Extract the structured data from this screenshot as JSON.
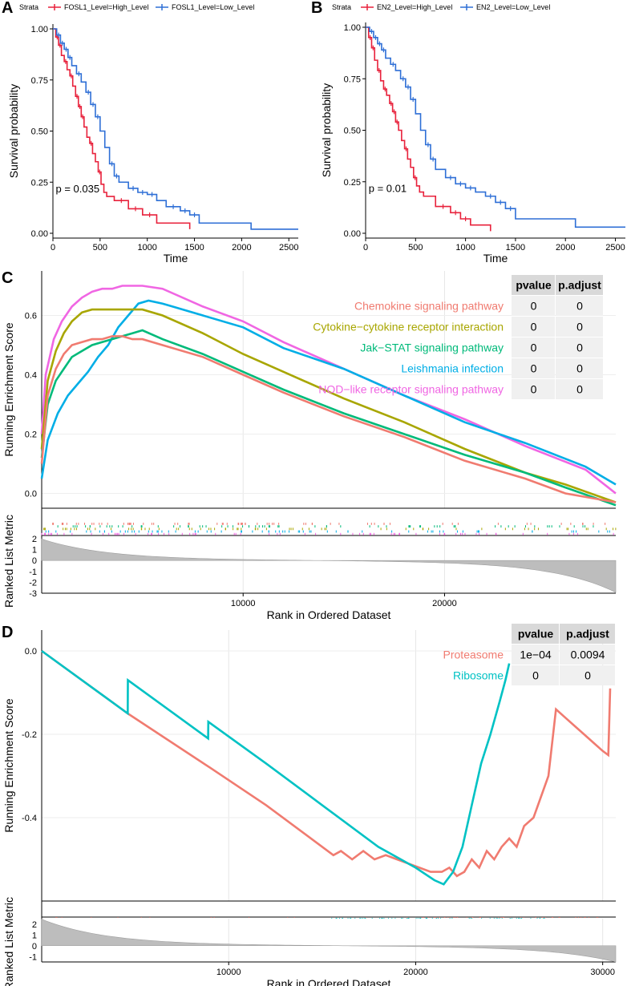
{
  "panels": {
    "A": "A",
    "B": "B",
    "C": "C",
    "D": "D"
  },
  "chart_data": [
    {
      "id": "A",
      "type": "line",
      "step": true,
      "legend_title": "Strata",
      "xlabel": "Time",
      "ylabel": "Survival probability",
      "xlim": [
        0,
        2600
      ],
      "ylim": [
        0,
        1
      ],
      "xticks": [
        0,
        500,
        1000,
        1500,
        2000,
        2500
      ],
      "yticks": [
        0,
        0.25,
        0.5,
        0.75,
        1
      ],
      "ytick_labels": [
        "0.00",
        "0.25",
        "0.50",
        "0.75",
        "1.00"
      ],
      "annotation": "p = 0.035",
      "series": [
        {
          "name": "FOSL1_Level=High_Level",
          "color": "#e8213b",
          "x": [
            0,
            30,
            60,
            90,
            120,
            150,
            180,
            210,
            240,
            270,
            300,
            330,
            360,
            390,
            420,
            450,
            480,
            510,
            540,
            570,
            650,
            800,
            950,
            1100,
            1450
          ],
          "y": [
            1.0,
            0.96,
            0.92,
            0.87,
            0.84,
            0.8,
            0.77,
            0.72,
            0.67,
            0.62,
            0.57,
            0.52,
            0.47,
            0.44,
            0.39,
            0.35,
            0.3,
            0.24,
            0.2,
            0.18,
            0.16,
            0.12,
            0.09,
            0.05,
            0.02
          ]
        },
        {
          "name": "FOSL1_Level=Low_Level",
          "color": "#2e6fd6",
          "x": [
            0,
            40,
            80,
            120,
            160,
            200,
            250,
            300,
            350,
            400,
            450,
            500,
            550,
            600,
            650,
            700,
            800,
            900,
            1000,
            1100,
            1200,
            1350,
            1450,
            1550,
            2100,
            2600
          ],
          "y": [
            1.0,
            0.97,
            0.93,
            0.9,
            0.86,
            0.82,
            0.78,
            0.74,
            0.69,
            0.63,
            0.57,
            0.5,
            0.42,
            0.34,
            0.28,
            0.25,
            0.22,
            0.2,
            0.19,
            0.16,
            0.13,
            0.11,
            0.09,
            0.05,
            0.02,
            0.02
          ]
        }
      ]
    },
    {
      "id": "B",
      "type": "line",
      "step": true,
      "legend_title": "Strata",
      "xlabel": "Time",
      "ylabel": "Survival probability",
      "xlim": [
        0,
        2600
      ],
      "ylim": [
        0,
        1
      ],
      "xticks": [
        0,
        500,
        1000,
        1500,
        2000,
        2500
      ],
      "yticks": [
        0,
        0.25,
        0.5,
        0.75,
        1
      ],
      "ytick_labels": [
        "0.00",
        "0.25",
        "0.50",
        "0.75",
        "1.00"
      ],
      "annotation": "p = 0.01",
      "series": [
        {
          "name": "EN2_Level=High_Level",
          "color": "#e8213b",
          "x": [
            0,
            30,
            60,
            90,
            120,
            150,
            180,
            210,
            240,
            270,
            300,
            330,
            360,
            390,
            420,
            450,
            480,
            510,
            540,
            580,
            700,
            850,
            950,
            1050,
            1250
          ],
          "y": [
            1.0,
            0.95,
            0.9,
            0.84,
            0.79,
            0.74,
            0.7,
            0.67,
            0.63,
            0.59,
            0.54,
            0.5,
            0.45,
            0.41,
            0.36,
            0.32,
            0.27,
            0.23,
            0.2,
            0.18,
            0.13,
            0.1,
            0.07,
            0.04,
            0.01
          ]
        },
        {
          "name": "EN2_Level=Low_Level",
          "color": "#2e6fd6",
          "x": [
            0,
            40,
            80,
            120,
            160,
            200,
            250,
            300,
            350,
            400,
            450,
            500,
            550,
            600,
            650,
            700,
            800,
            900,
            1000,
            1100,
            1200,
            1300,
            1400,
            1500,
            2100,
            2600
          ],
          "y": [
            1.0,
            0.98,
            0.95,
            0.92,
            0.89,
            0.85,
            0.82,
            0.79,
            0.75,
            0.71,
            0.65,
            0.58,
            0.5,
            0.43,
            0.36,
            0.31,
            0.27,
            0.24,
            0.22,
            0.2,
            0.18,
            0.15,
            0.12,
            0.07,
            0.03,
            0.03
          ]
        }
      ]
    },
    {
      "id": "C",
      "type": "line",
      "xlabel": "Rank in Ordered Dataset",
      "ylabel": "Running Enrichment Score",
      "ylabel2": "Ranked List Metric",
      "xlim": [
        0,
        28500
      ],
      "ylim": [
        -0.05,
        0.75
      ],
      "xticks": [
        10000,
        20000
      ],
      "yticks": [
        0,
        0.2,
        0.4,
        0.6
      ],
      "ytick_labels": [
        "0.0",
        "0.2",
        "0.4",
        "0.6"
      ],
      "metric_ticks": [
        2,
        1,
        0,
        -1,
        -2,
        -3
      ],
      "metric_range": [
        -3,
        2
      ],
      "table": {
        "headers": [
          "pvalue",
          "p.adjust"
        ],
        "rows": [
          {
            "name": "Chemokine signaling pathway",
            "pvalue": "0",
            "padjust": "0",
            "color": "#f07b70"
          },
          {
            "name": "Cytokine−cytokine receptor interaction",
            "pvalue": "0",
            "padjust": "0",
            "color": "#a8a600"
          },
          {
            "name": "Jak−STAT signaling pathway",
            "pvalue": "0",
            "padjust": "0",
            "color": "#00ba7a"
          },
          {
            "name": "Leishmania infection",
            "pvalue": "0",
            "padjust": "0",
            "color": "#00aee6"
          },
          {
            "name": "NOD−like receptor signaling pathway",
            "pvalue": "0",
            "padjust": "0",
            "color": "#f066e3"
          }
        ]
      },
      "series": [
        {
          "name": "NOD−like receptor signaling pathway",
          "color": "#f066e3",
          "x": [
            0,
            200,
            600,
            1000,
            1500,
            2000,
            2500,
            3000,
            3500,
            4000,
            4500,
            5000,
            6000,
            8000,
            10000,
            12000,
            15000,
            18000,
            21000,
            24000,
            27000,
            28500
          ],
          "y": [
            0.2,
            0.4,
            0.52,
            0.58,
            0.63,
            0.66,
            0.68,
            0.69,
            0.69,
            0.7,
            0.7,
            0.7,
            0.69,
            0.63,
            0.58,
            0.51,
            0.42,
            0.33,
            0.25,
            0.16,
            0.08,
            0.0
          ]
        },
        {
          "name": "Leishmania infection",
          "color": "#00aee6",
          "x": [
            0,
            300,
            800,
            1300,
            1800,
            2300,
            2800,
            3300,
            3800,
            4300,
            4800,
            5300,
            6000,
            8000,
            10000,
            12000,
            15000,
            18000,
            21000,
            24000,
            27000,
            28500
          ],
          "y": [
            0.05,
            0.18,
            0.27,
            0.33,
            0.37,
            0.41,
            0.46,
            0.5,
            0.56,
            0.6,
            0.64,
            0.65,
            0.64,
            0.6,
            0.56,
            0.49,
            0.42,
            0.33,
            0.24,
            0.17,
            0.09,
            0.03
          ]
        },
        {
          "name": "Cytokine−cytokine receptor interaction",
          "color": "#a8a600",
          "x": [
            0,
            300,
            700,
            1100,
            1500,
            2000,
            2500,
            3000,
            3500,
            4000,
            4500,
            5000,
            6000,
            8000,
            10000,
            12000,
            15000,
            18000,
            21000,
            24000,
            26000,
            28500
          ],
          "y": [
            0.15,
            0.38,
            0.48,
            0.54,
            0.58,
            0.61,
            0.62,
            0.62,
            0.62,
            0.62,
            0.62,
            0.62,
            0.6,
            0.54,
            0.47,
            0.41,
            0.32,
            0.24,
            0.15,
            0.07,
            0.03,
            -0.03
          ]
        },
        {
          "name": "Jak−STAT signaling pathway",
          "color": "#00ba7a",
          "x": [
            0,
            300,
            700,
            1100,
            1500,
            2000,
            2500,
            3000,
            3500,
            4000,
            4500,
            5000,
            6000,
            8000,
            10000,
            12000,
            15000,
            18000,
            21000,
            24000,
            26000,
            28500
          ],
          "y": [
            0.12,
            0.3,
            0.38,
            0.42,
            0.46,
            0.48,
            0.5,
            0.51,
            0.52,
            0.53,
            0.54,
            0.55,
            0.52,
            0.47,
            0.41,
            0.35,
            0.27,
            0.2,
            0.13,
            0.07,
            0.02,
            -0.04
          ]
        },
        {
          "name": "Chemokine signaling pathway",
          "color": "#f07b70",
          "x": [
            0,
            300,
            700,
            1100,
            1500,
            2000,
            2500,
            3000,
            3500,
            4000,
            4500,
            5000,
            6000,
            8000,
            10000,
            12000,
            15000,
            18000,
            21000,
            24000,
            26000,
            28500
          ],
          "y": [
            0.1,
            0.33,
            0.42,
            0.47,
            0.5,
            0.51,
            0.52,
            0.52,
            0.53,
            0.53,
            0.52,
            0.52,
            0.5,
            0.46,
            0.4,
            0.34,
            0.26,
            0.19,
            0.11,
            0.05,
            0.0,
            -0.03
          ]
        }
      ]
    },
    {
      "id": "D",
      "type": "line",
      "xlabel": "Rank in Ordered Dataset",
      "ylabel": "Running Enrichment Score",
      "ylabel2": "Ranked List Metric",
      "xlim": [
        0,
        30700
      ],
      "ylim": [
        -0.6,
        0.05
      ],
      "xticks": [
        10000,
        20000,
        30000
      ],
      "yticks": [
        0,
        -0.2,
        -0.4
      ],
      "ytick_labels": [
        "0.0",
        "-0.2",
        "-0.4"
      ],
      "metric_ticks": [
        2,
        1,
        0,
        -1
      ],
      "metric_range": [
        -1.5,
        2.5
      ],
      "table": {
        "headers": [
          "pvalue",
          "p.adjust"
        ],
        "rows": [
          {
            "name": "Proteasome",
            "pvalue": "1e−04",
            "padjust": "0.0094",
            "color": "#f07b70"
          },
          {
            "name": "Ribosome",
            "pvalue": "0",
            "padjust": "0",
            "color": "#00c2c4"
          }
        ]
      },
      "series": [
        {
          "name": "Proteasome",
          "color": "#f07b70",
          "x": [
            0,
            4600,
            9000,
            12000,
            15600,
            16000,
            16600,
            17200,
            17800,
            18400,
            19000,
            19600,
            20200,
            20800,
            21400,
            21800,
            22200,
            22600,
            23000,
            23400,
            23800,
            24200,
            24600,
            25000,
            25400,
            25800,
            26300,
            26700,
            27100,
            27500,
            28000,
            28500,
            29000,
            29500,
            30000,
            30300,
            30400
          ],
          "y": [
            0,
            -0.15,
            -0.28,
            -0.37,
            -0.49,
            -0.48,
            -0.5,
            -0.48,
            -0.5,
            -0.49,
            -0.5,
            -0.51,
            -0.52,
            -0.53,
            -0.53,
            -0.52,
            -0.54,
            -0.53,
            -0.5,
            -0.52,
            -0.48,
            -0.5,
            -0.47,
            -0.45,
            -0.47,
            -0.42,
            -0.4,
            -0.35,
            -0.3,
            -0.14,
            -0.16,
            -0.18,
            -0.2,
            -0.22,
            -0.24,
            -0.25,
            -0.09
          ]
        },
        {
          "name": "Ribosome",
          "color": "#00c2c4",
          "x": [
            0,
            4600,
            4610,
            8900,
            8910,
            12000,
            15000,
            18000,
            20000,
            21000,
            21500,
            22000,
            22500,
            23000,
            23500,
            24000,
            24500,
            24800,
            25000
          ],
          "y": [
            0,
            -0.15,
            -0.07,
            -0.21,
            -0.17,
            -0.27,
            -0.37,
            -0.47,
            -0.52,
            -0.55,
            -0.56,
            -0.53,
            -0.47,
            -0.37,
            -0.27,
            -0.2,
            -0.12,
            -0.07,
            -0.03
          ]
        }
      ]
    }
  ]
}
